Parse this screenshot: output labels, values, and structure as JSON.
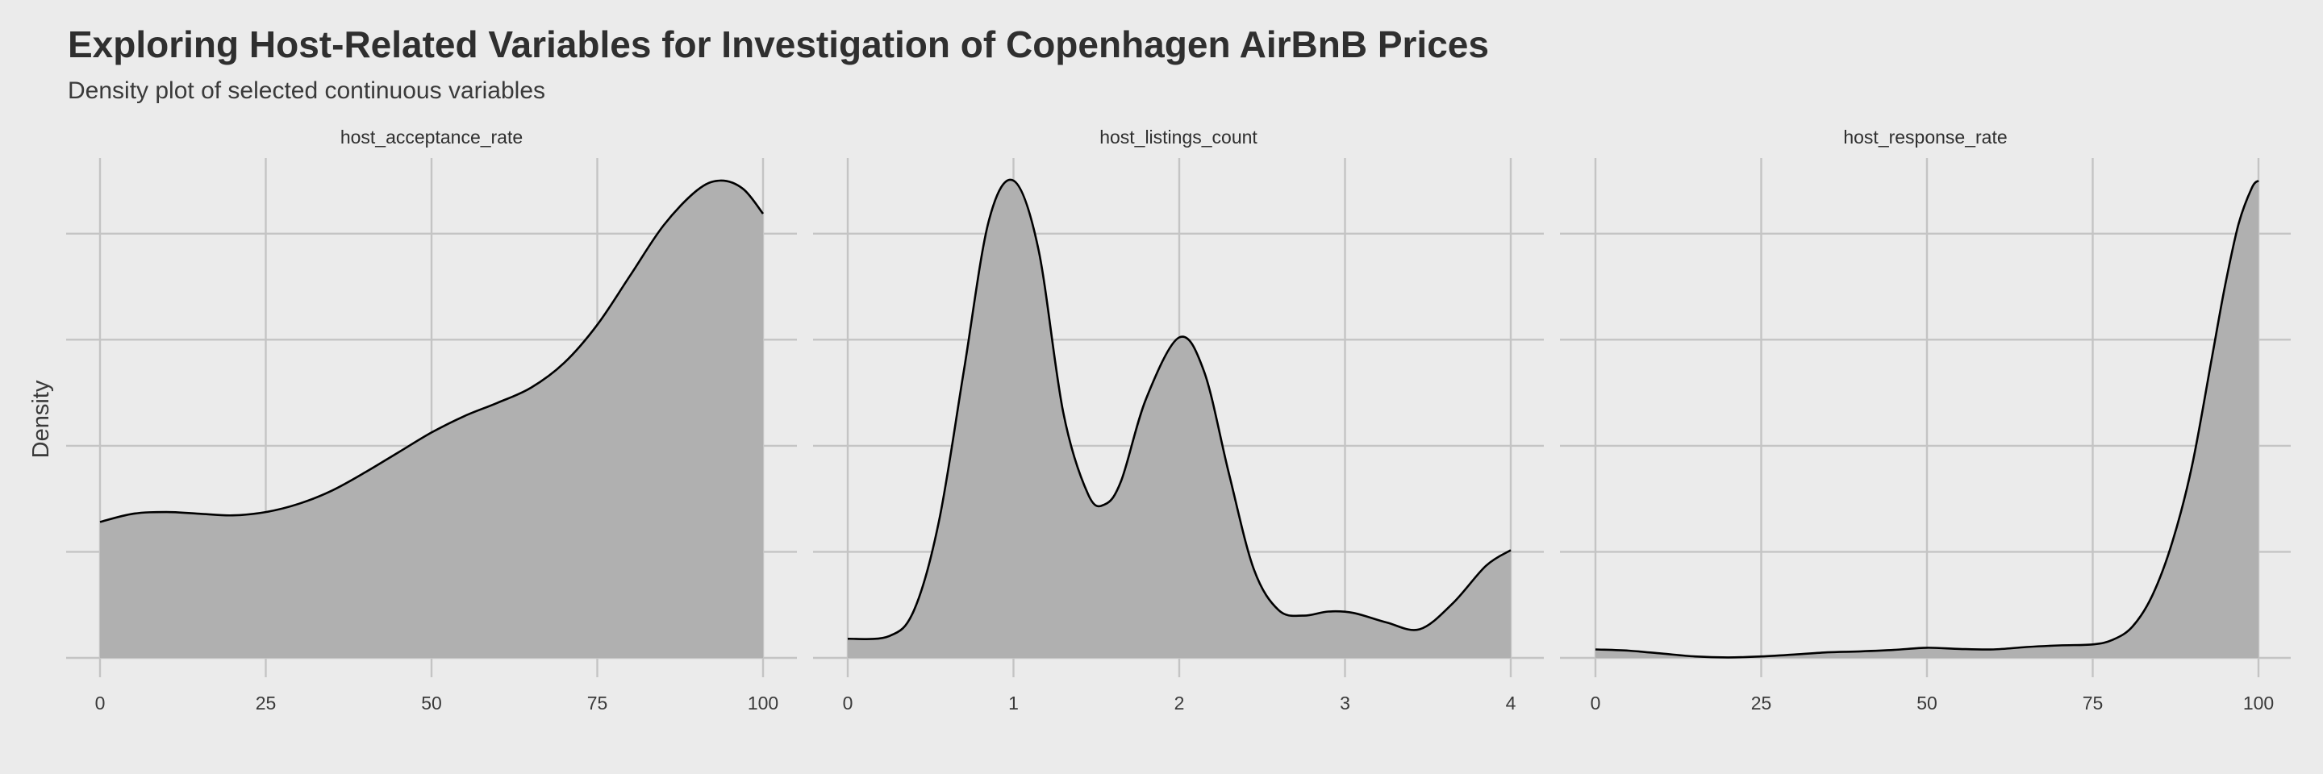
{
  "chart_data": {
    "type": "area",
    "title": "Exploring Host-Related Variables for Investigation of Copenhagen AirBnB Prices",
    "subtitle": "Density plot of selected continuous variables",
    "xlabel": "",
    "ylabel": "Density",
    "grid": true,
    "legend": "none",
    "fill_color": "#b0b0b0",
    "line_color": "#000000",
    "background_color": "#ebebeb",
    "panels": [
      {
        "name": "host_acceptance_rate",
        "xlim": [
          0,
          100
        ],
        "xticks": [
          0,
          25,
          50,
          75,
          100
        ],
        "x": [
          0,
          5,
          10,
          15,
          20,
          25,
          30,
          35,
          40,
          45,
          50,
          55,
          60,
          65,
          70,
          75,
          80,
          85,
          90,
          93.5,
          97,
          100
        ],
        "y": [
          0.0082,
          0.0087,
          0.0088,
          0.0087,
          0.0086,
          0.0088,
          0.0093,
          0.0101,
          0.0112,
          0.0124,
          0.0136,
          0.0146,
          0.0154,
          0.0163,
          0.0178,
          0.0201,
          0.0231,
          0.0261,
          0.0282,
          0.0288,
          0.0283,
          0.0268
        ]
      },
      {
        "name": "host_listings_count",
        "xlim": [
          0,
          4
        ],
        "xticks": [
          0,
          1,
          2,
          3,
          4
        ],
        "x": [
          0,
          0.25,
          0.4,
          0.55,
          0.7,
          0.85,
          1.0,
          1.15,
          1.3,
          1.45,
          1.55,
          1.65,
          1.8,
          2.0,
          2.15,
          2.3,
          2.45,
          2.6,
          2.75,
          2.9,
          3.05,
          3.25,
          3.45,
          3.65,
          3.85,
          4.0
        ],
        "y": [
          0.028,
          0.032,
          0.07,
          0.2,
          0.42,
          0.64,
          0.7,
          0.6,
          0.36,
          0.24,
          0.225,
          0.26,
          0.38,
          0.47,
          0.42,
          0.27,
          0.13,
          0.07,
          0.062,
          0.068,
          0.066,
          0.052,
          0.042,
          0.08,
          0.135,
          0.158
        ]
      },
      {
        "name": "host_response_rate",
        "xlim": [
          0,
          100
        ],
        "xticks": [
          0,
          25,
          50,
          75,
          100
        ],
        "x": [
          0,
          5,
          10,
          15,
          20,
          25,
          30,
          35,
          40,
          45,
          50,
          55,
          60,
          65,
          70,
          75,
          78,
          81,
          84,
          87,
          90,
          93,
          95,
          97,
          99,
          100
        ],
        "y": [
          0.0035,
          0.003,
          0.0018,
          0.0006,
          0.0002,
          0.0006,
          0.0014,
          0.0023,
          0.0027,
          0.0033,
          0.0042,
          0.0037,
          0.0035,
          0.0045,
          0.0052,
          0.0056,
          0.0075,
          0.013,
          0.026,
          0.048,
          0.08,
          0.125,
          0.155,
          0.18,
          0.195,
          0.198
        ]
      }
    ]
  }
}
